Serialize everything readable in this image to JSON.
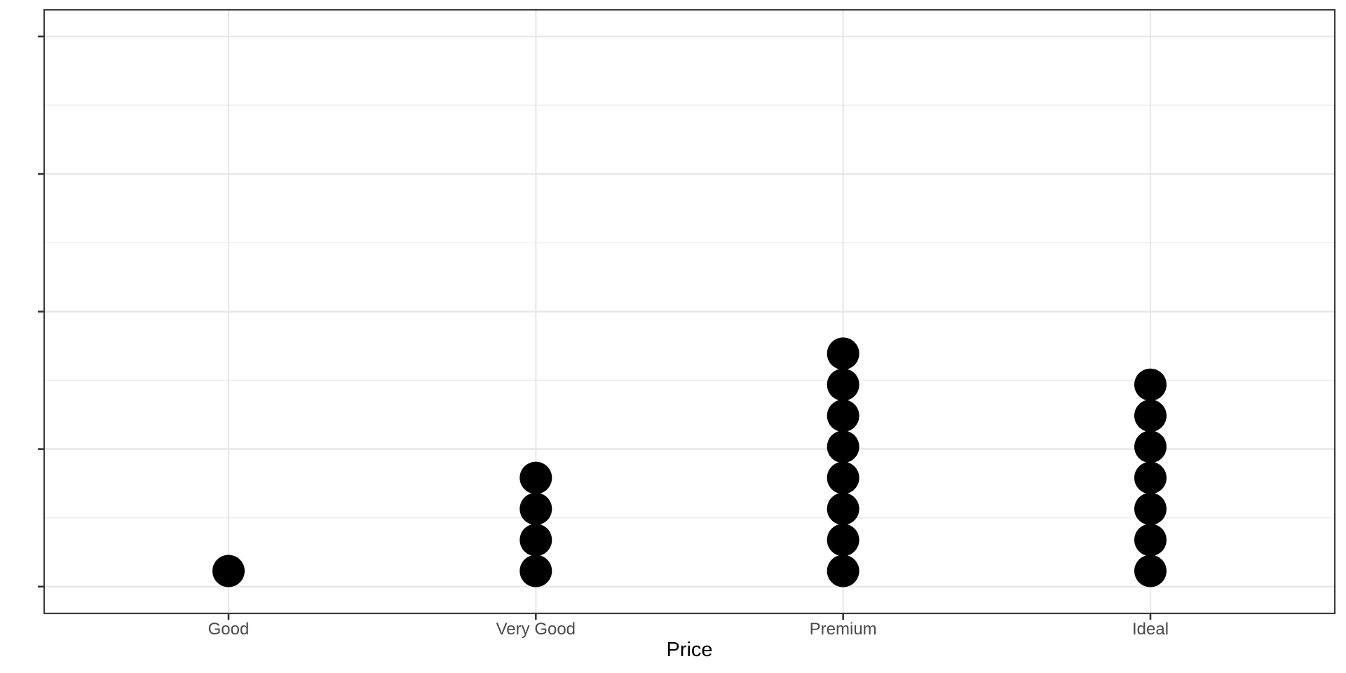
{
  "chart_data": {
    "type": "dotplot",
    "title": "",
    "xlabel": "Price",
    "ylabel": "",
    "categories": [
      "Good",
      "Very Good",
      "Premium",
      "Ideal"
    ],
    "values": [
      1,
      4,
      8,
      7
    ],
    "series_note": "each category shows a vertical stack of dots; dot count per category listed in values",
    "x_axis": {
      "tick_labels": [
        "Good",
        "Very Good",
        "Premium",
        "Ideal"
      ],
      "title": "Price"
    },
    "y_axis": {
      "tick_labels_shown": false,
      "major_tick_count": 5,
      "minor_gridline_count": 4
    },
    "legend": "none",
    "grid": "on"
  },
  "style": {
    "background_color": "#ffffff",
    "panel_background": "#ffffff",
    "panel_border_color": "#3c3c3c",
    "grid_major_color": "#e8e8e8",
    "grid_minor_color": "#ededed",
    "tick_color": "#333333",
    "tick_label_color": "#4a4a4a",
    "axis_title_color": "#000000",
    "dot_color": "#000000"
  }
}
